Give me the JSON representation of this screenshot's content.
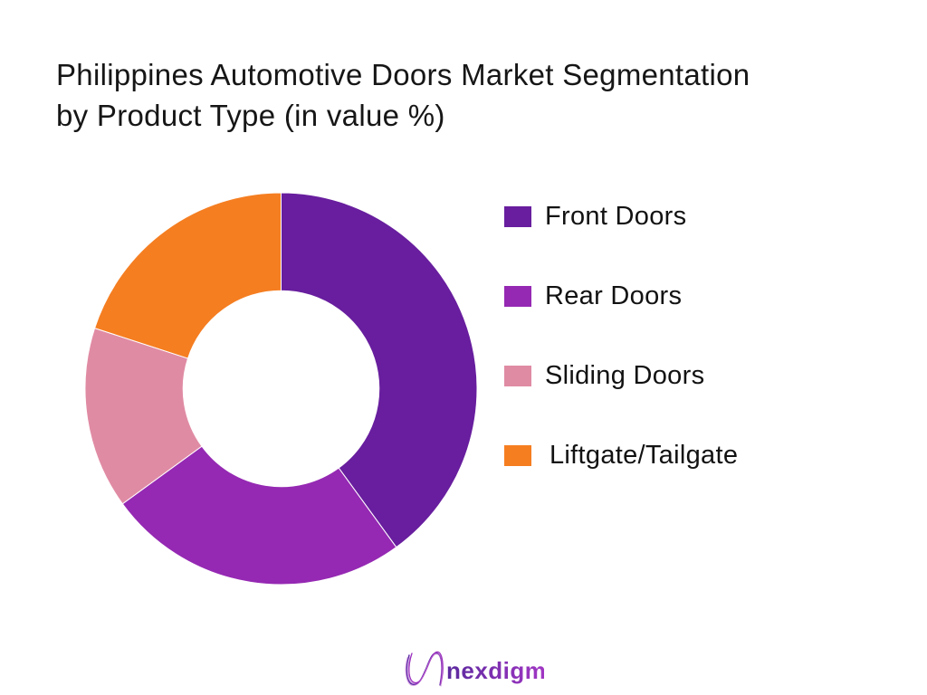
{
  "title": {
    "line1": "Philippines Automotive Doors Market Segmentation",
    "line2": "by Product Type (in value %)"
  },
  "chart_data": {
    "type": "pie",
    "variant": "donut",
    "title": "Philippines Automotive Doors Market Segmentation by Product Type (in value %)",
    "categories": [
      "Front Doors",
      "Rear Doors",
      "Sliding Doors",
      "Liftgate/Tailgate"
    ],
    "values": [
      40,
      25,
      15,
      20
    ],
    "unit": "%",
    "colors": [
      "#681E9E",
      "#9529B3",
      "#E08BA4",
      "#F57E21"
    ],
    "start_angle_deg": 0,
    "clockwise": true,
    "inner_radius_ratio": 0.5,
    "separator_color": "#ffffff",
    "legend_position": "right",
    "data_labels": false
  },
  "logo": {
    "text": "nexdigm",
    "gradient_start": "#5B2A9E",
    "gradient_end": "#A236C4",
    "mark_colors": [
      "#5B2AA6",
      "#9C30BE",
      "#C77BD6"
    ]
  }
}
